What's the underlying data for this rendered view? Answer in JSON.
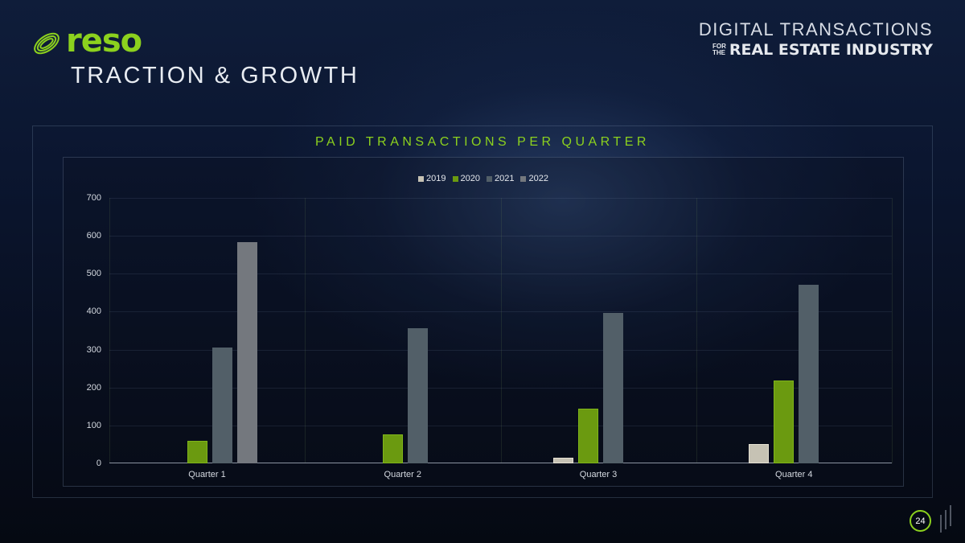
{
  "header": {
    "brand": "reso",
    "title": "TRACTION & GROWTH",
    "tagline_top": "DIGITAL TRANSACTIONS",
    "tagline_for": "FOR",
    "tagline_the": "THE",
    "tagline_bottom": "REAL ESTATE INDUSTRY"
  },
  "colors": {
    "accent": "#8cd11e",
    "series_2019": "#c6c2b4",
    "series_2020": "#6b9a10",
    "series_2021": "#525f68",
    "series_2022": "#74787e"
  },
  "footer": {
    "page_number": "24"
  },
  "chart_data": {
    "type": "bar",
    "title": "PAID TRANSACTIONS PER QUARTER",
    "xlabel": "",
    "ylabel": "",
    "categories": [
      "Quarter 1",
      "Quarter 2",
      "Quarter 3",
      "Quarter 4"
    ],
    "series": [
      {
        "name": "2019",
        "values": [
          0,
          0,
          15,
          52
        ]
      },
      {
        "name": "2020",
        "values": [
          60,
          77,
          145,
          218
        ]
      },
      {
        "name": "2021",
        "values": [
          305,
          357,
          397,
          472
        ]
      },
      {
        "name": "2022",
        "values": [
          583,
          0,
          0,
          0
        ]
      }
    ],
    "ylim": [
      0,
      700
    ],
    "yticks": [
      "0",
      "100",
      "200",
      "300",
      "400",
      "500",
      "600",
      "700"
    ],
    "grid": true,
    "legend_position": "top"
  }
}
